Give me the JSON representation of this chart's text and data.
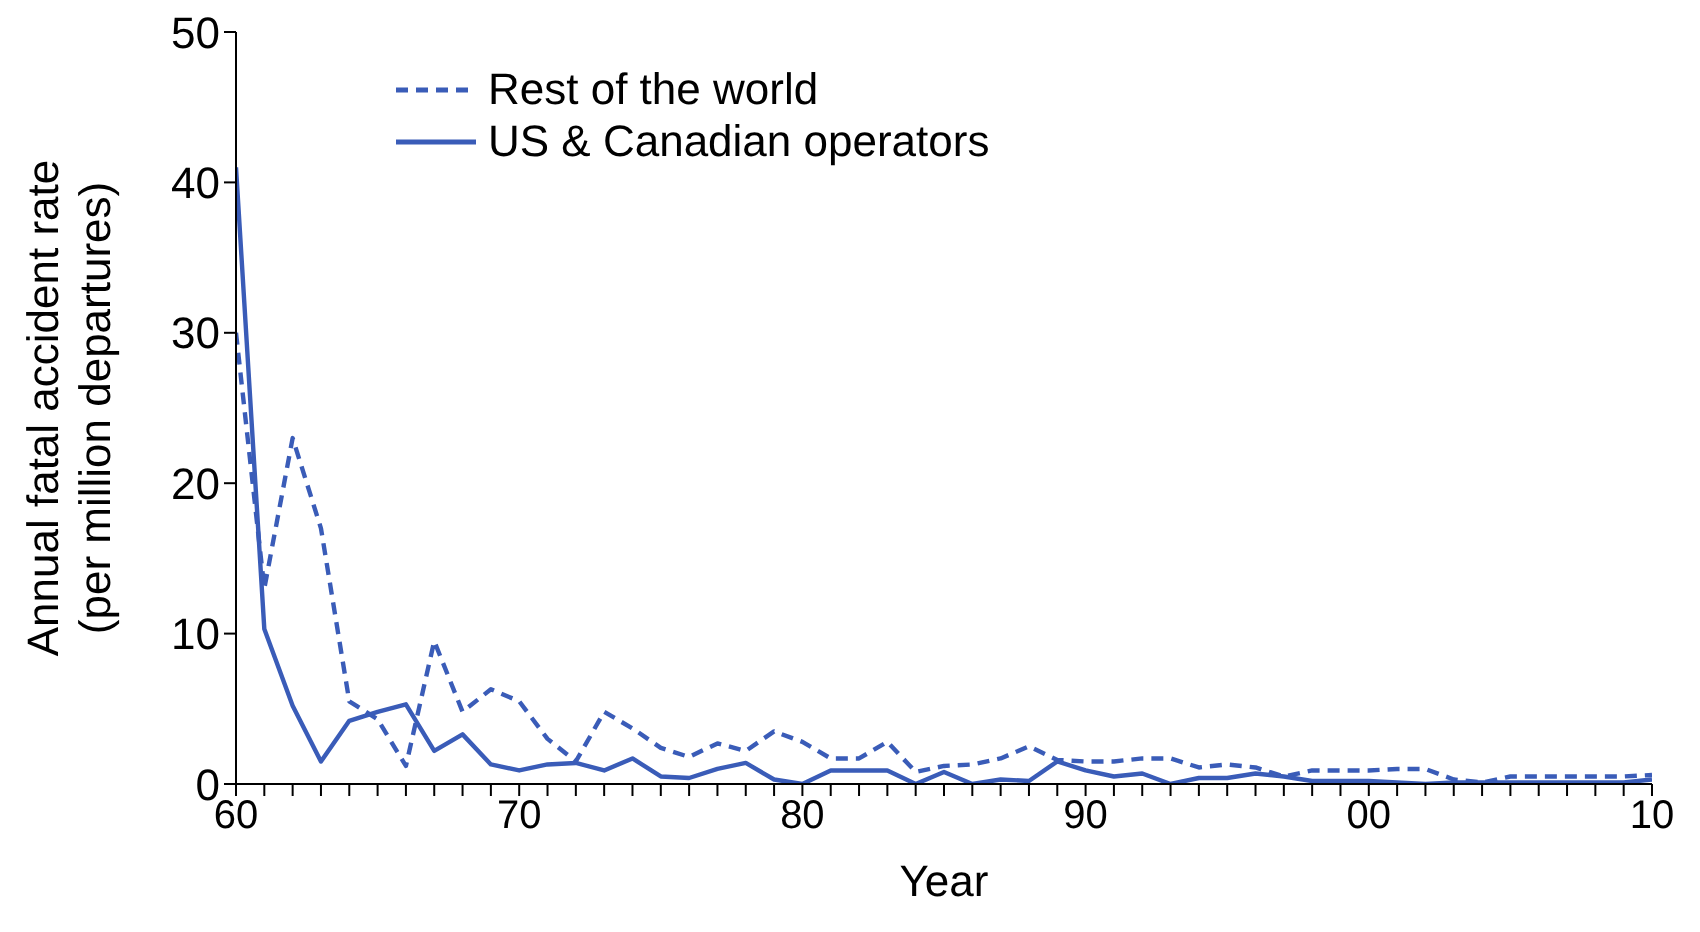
{
  "chart_data": {
    "type": "line",
    "xlabel": "Year",
    "ylabel": "Annual fatal accident rate\n(per million departures)",
    "x": [
      1960,
      1961,
      1962,
      1963,
      1964,
      1965,
      1966,
      1967,
      1968,
      1969,
      1970,
      1971,
      1972,
      1973,
      1974,
      1975,
      1976,
      1977,
      1978,
      1979,
      1980,
      1981,
      1982,
      1983,
      1984,
      1985,
      1986,
      1987,
      1988,
      1989,
      1990,
      1991,
      1992,
      1993,
      1994,
      1995,
      1996,
      1997,
      1998,
      1999,
      2000,
      2001,
      2002,
      2003,
      2004,
      2005,
      2006,
      2007,
      2008,
      2009,
      2010
    ],
    "series": [
      {
        "name": "Rest of the world",
        "color": "#3a5cb8",
        "line_style": "dashed",
        "values": [
          30,
          13,
          23,
          17,
          5.5,
          4.3,
          1.2,
          9.5,
          4.8,
          6.3,
          5.5,
          3,
          1.5,
          4.8,
          3.7,
          2.4,
          1.8,
          2.7,
          2.2,
          3.5,
          2.8,
          1.7,
          1.7,
          2.8,
          0.8,
          1.2,
          1.3,
          1.7,
          2.5,
          1.6,
          1.5,
          1.5,
          1.7,
          1.7,
          1.1,
          1.3,
          1.1,
          0.5,
          0.9,
          0.9,
          0.9,
          1,
          1,
          0.3,
          0.1,
          0.5,
          0.5,
          0.5,
          0.5,
          0.5,
          0.6
        ]
      },
      {
        "name": "US & Canadian operators",
        "color": "#3a5cb8",
        "line_style": "solid",
        "values": [
          41,
          10.3,
          5.2,
          1.5,
          4.2,
          4.8,
          5.3,
          2.2,
          3.3,
          1.3,
          0.9,
          1.3,
          1.4,
          0.9,
          1.7,
          0.5,
          0.4,
          1,
          1.4,
          0.3,
          0,
          0.9,
          0.9,
          0.9,
          0,
          0.8,
          0,
          0.3,
          0.2,
          1.5,
          0.9,
          0.5,
          0.7,
          0,
          0.4,
          0.4,
          0.7,
          0.5,
          0.2,
          0.2,
          0.2,
          0.1,
          0,
          0.1,
          0.1,
          0.1,
          0.1,
          0.1,
          0.1,
          0.1,
          0.3
        ]
      }
    ],
    "xlim": [
      1960,
      2010
    ],
    "xticks": [
      {
        "value": 1960,
        "label": "60"
      },
      {
        "value": 1961,
        "label": null
      },
      {
        "value": 1962,
        "label": null
      },
      {
        "value": 1963,
        "label": null
      },
      {
        "value": 1964,
        "label": null
      },
      {
        "value": 1965,
        "label": null
      },
      {
        "value": 1966,
        "label": null
      },
      {
        "value": 1967,
        "label": null
      },
      {
        "value": 1968,
        "label": null
      },
      {
        "value": 1969,
        "label": null
      },
      {
        "value": 1970,
        "label": "70"
      },
      {
        "value": 1971,
        "label": null
      },
      {
        "value": 1972,
        "label": null
      },
      {
        "value": 1973,
        "label": null
      },
      {
        "value": 1974,
        "label": null
      },
      {
        "value": 1975,
        "label": null
      },
      {
        "value": 1976,
        "label": null
      },
      {
        "value": 1977,
        "label": null
      },
      {
        "value": 1978,
        "label": null
      },
      {
        "value": 1979,
        "label": null
      },
      {
        "value": 1980,
        "label": "80"
      },
      {
        "value": 1981,
        "label": null
      },
      {
        "value": 1982,
        "label": null
      },
      {
        "value": 1983,
        "label": null
      },
      {
        "value": 1984,
        "label": null
      },
      {
        "value": 1985,
        "label": null
      },
      {
        "value": 1986,
        "label": null
      },
      {
        "value": 1987,
        "label": null
      },
      {
        "value": 1988,
        "label": null
      },
      {
        "value": 1989,
        "label": null
      },
      {
        "value": 1990,
        "label": "90"
      },
      {
        "value": 1991,
        "label": null
      },
      {
        "value": 1992,
        "label": null
      },
      {
        "value": 1993,
        "label": null
      },
      {
        "value": 1994,
        "label": null
      },
      {
        "value": 1995,
        "label": null
      },
      {
        "value": 1996,
        "label": null
      },
      {
        "value": 1997,
        "label": null
      },
      {
        "value": 1998,
        "label": null
      },
      {
        "value": 1999,
        "label": null
      },
      {
        "value": 2000,
        "label": "00"
      },
      {
        "value": 2001,
        "label": null
      },
      {
        "value": 2002,
        "label": null
      },
      {
        "value": 2003,
        "label": null
      },
      {
        "value": 2004,
        "label": null
      },
      {
        "value": 2005,
        "label": null
      },
      {
        "value": 2006,
        "label": null
      },
      {
        "value": 2007,
        "label": null
      },
      {
        "value": 2008,
        "label": null
      },
      {
        "value": 2009,
        "label": null
      },
      {
        "value": 2010,
        "label": "10"
      }
    ],
    "ylim": [
      0,
      50
    ],
    "yticks": [
      0,
      10,
      20,
      30,
      40,
      50
    ],
    "grid": false,
    "legend": "top left",
    "marker": "none"
  }
}
